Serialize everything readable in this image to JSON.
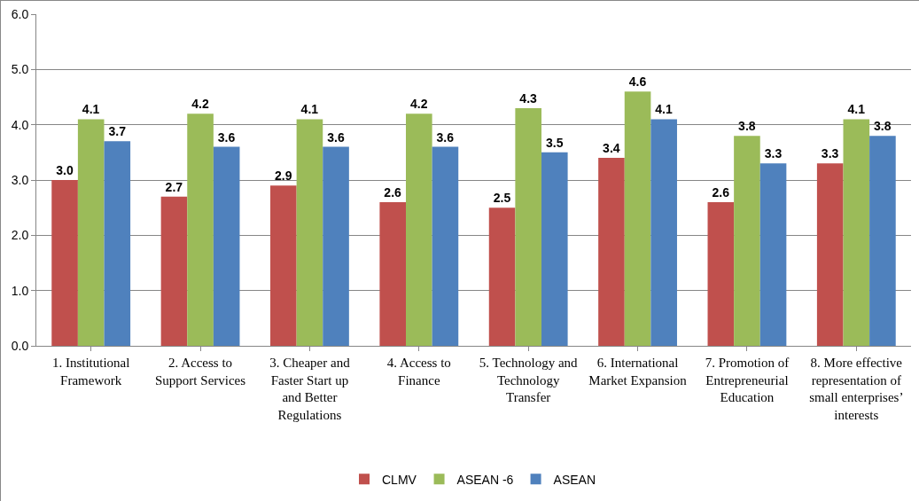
{
  "chart_data": {
    "type": "bar",
    "categories": [
      "1. Institutional Framework",
      "2. Access to Support Services",
      "3. Cheaper and Faster Start up and Better Regulations",
      "4. Access to Finance",
      "5. Technology and Technology Transfer",
      "6. International Market Expansion",
      "7. Promotion of Entrepreneurial Education",
      "8. More effective representation of small enterprises’ interests"
    ],
    "series": [
      {
        "name": "CLMV",
        "color": "#c0504d",
        "values": [
          3.0,
          2.7,
          2.9,
          2.6,
          2.5,
          3.4,
          2.6,
          3.3
        ],
        "value_labels": [
          "3.0",
          "2.7",
          "2.9",
          "2.6",
          "2.5",
          "3.4",
          "2.6",
          "3.3"
        ]
      },
      {
        "name": "ASEAN -6",
        "color": "#9bbb59",
        "values": [
          4.1,
          4.2,
          4.1,
          4.2,
          4.3,
          4.6,
          3.8,
          4.1
        ],
        "value_labels": [
          "4.1",
          "4.2",
          "4.1",
          "4.2",
          "4.3",
          "4.6",
          "3.8",
          "4.1"
        ]
      },
      {
        "name": "ASEAN",
        "color": "#4f81bd",
        "values": [
          3.7,
          3.6,
          3.6,
          3.6,
          3.5,
          4.1,
          3.3,
          3.8
        ],
        "value_labels": [
          "3.7",
          "3.6",
          "3.6",
          "3.6",
          "3.5",
          "4.1",
          "3.3",
          "3.8"
        ]
      }
    ],
    "ylim": [
      0,
      6
    ],
    "yticks": [
      {
        "value": 0,
        "label": "0.0"
      },
      {
        "value": 1,
        "label": "1.0"
      },
      {
        "value": 2,
        "label": "2.0"
      },
      {
        "value": 3,
        "label": "3.0"
      },
      {
        "value": 4,
        "label": "4.0"
      },
      {
        "value": 5,
        "label": "5.0"
      },
      {
        "value": 6,
        "label": "6.0"
      }
    ],
    "grid": "y",
    "legend": "bottom"
  }
}
